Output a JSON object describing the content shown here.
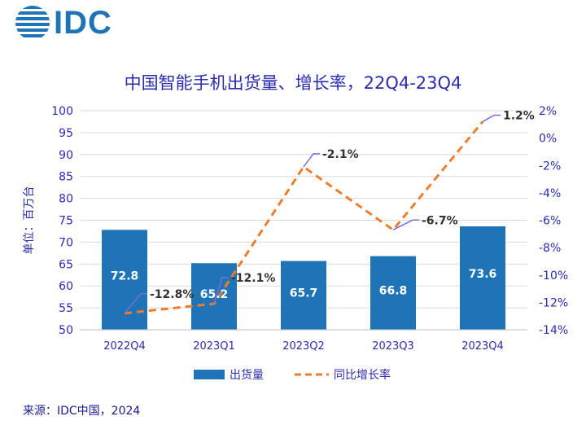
{
  "brand": {
    "name": "IDC",
    "color": "#1f73b7"
  },
  "source": "来源：IDC中国，2024",
  "chart_data": {
    "type": "bar",
    "title": "中国智能手机出货量、增长率，22Q4-23Q4",
    "ylabel": "单位：百万台",
    "categories": [
      "2022Q4",
      "2023Q1",
      "2023Q2",
      "2023Q3",
      "2023Q4"
    ],
    "ylim": [
      50,
      100
    ],
    "yticks": [
      50,
      55,
      60,
      65,
      70,
      75,
      80,
      85,
      90,
      95,
      100
    ],
    "y2lim": [
      -14,
      2
    ],
    "y2ticks": [
      2,
      0,
      -2,
      -4,
      -6,
      -8,
      -10,
      -12,
      -14
    ],
    "y2tick_labels": [
      "2%",
      "0%",
      "-2%",
      "-4%",
      "-6%",
      "-8%",
      "-10%",
      "-12%",
      "-14%"
    ],
    "grid": true,
    "legend_position": "bottom",
    "series": [
      {
        "name": "出货量",
        "type": "bar",
        "axis": "left",
        "color": "#1f73b7",
        "values": [
          72.8,
          65.2,
          65.7,
          66.8,
          73.6
        ],
        "labels": [
          "72.8",
          "65.2",
          "65.7",
          "66.8",
          "73.6"
        ]
      },
      {
        "name": "同比增长率",
        "type": "line",
        "axis": "right",
        "color": "#ee7d2b",
        "dashed": true,
        "values": [
          -12.8,
          -12.1,
          -2.1,
          -6.7,
          1.2
        ],
        "labels": [
          "-12.8%",
          "-12.1%",
          "-2.1%",
          "-6.7%",
          "1.2%"
        ]
      }
    ]
  }
}
